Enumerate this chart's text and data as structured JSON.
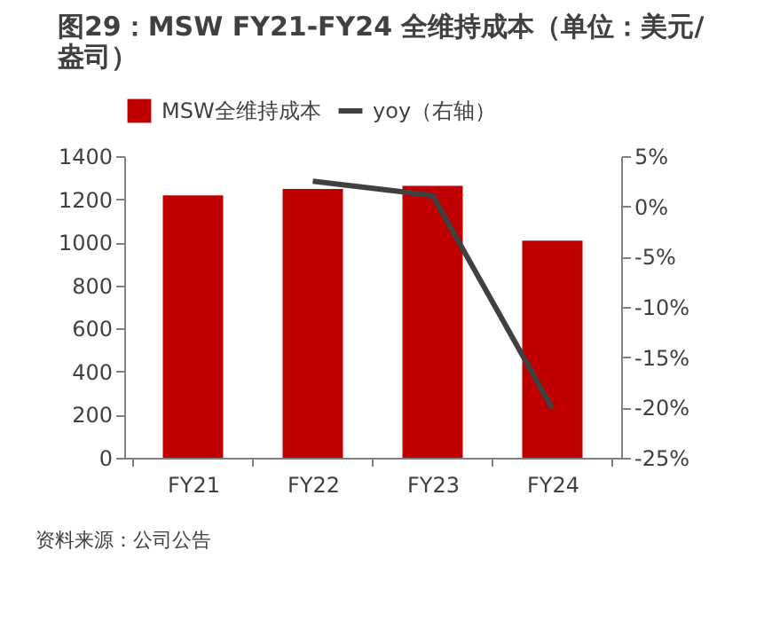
{
  "chart_data": {
    "type": "bar",
    "title": "图29：MSW FY21-FY24 全维持成本（单位：美元/盎司）",
    "categories": [
      "FY21",
      "FY22",
      "FY23",
      "FY24"
    ],
    "series": [
      {
        "name": "MSW全维持成本",
        "color": "#c00000",
        "values": [
          1218,
          1248,
          1262,
          1008
        ]
      },
      {
        "name": "yoy（右轴）",
        "type": "line",
        "axis": "y2",
        "color": "#404040",
        "values": [
          null,
          2.5,
          1.1,
          -20.1
        ]
      }
    ],
    "ylim": [
      0,
      1400
    ],
    "yticks": [
      0,
      200,
      400,
      600,
      800,
      1000,
      1200,
      1400
    ],
    "y2lim": [
      -25,
      5
    ],
    "y2ticks": [
      {
        "value": 5,
        "label": "5%"
      },
      {
        "value": 0,
        "label": "0%"
      },
      {
        "value": -5,
        "label": "-5%"
      },
      {
        "value": -10,
        "label": "-10%"
      },
      {
        "value": -15,
        "label": "-15%"
      },
      {
        "value": -20,
        "label": "-20%"
      },
      {
        "value": -25,
        "label": "-25%"
      }
    ],
    "legend": "top",
    "grid": false,
    "annotations": [
      "资料来源：公司公告"
    ]
  }
}
